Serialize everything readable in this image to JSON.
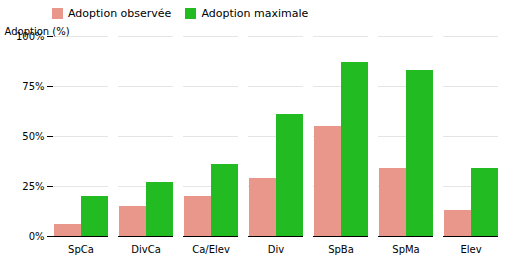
{
  "chart_data": {
    "type": "bar",
    "ylabel": "Adoption (%)",
    "categories": [
      "SpCa",
      "DivCa",
      "Ca/Elev",
      "Div",
      "SpBa",
      "SpMa",
      "Elev"
    ],
    "series": [
      {
        "name": "Adoption observée",
        "color": "#E8978A",
        "values": [
          6,
          15,
          20,
          29,
          55,
          34,
          13
        ]
      },
      {
        "name": "Adoption maximale",
        "color": "#22BB22",
        "values": [
          20,
          27,
          36,
          61,
          87,
          83,
          34
        ]
      }
    ],
    "ylim": [
      0,
      100
    ],
    "yticks": [
      {
        "value": 0,
        "label": "0%"
      },
      {
        "value": 25,
        "label": "25%"
      },
      {
        "value": 50,
        "label": "50%"
      },
      {
        "value": 75,
        "label": "75%"
      },
      {
        "value": 100,
        "label": "100%"
      }
    ],
    "grid": true,
    "legend": "upper left"
  }
}
